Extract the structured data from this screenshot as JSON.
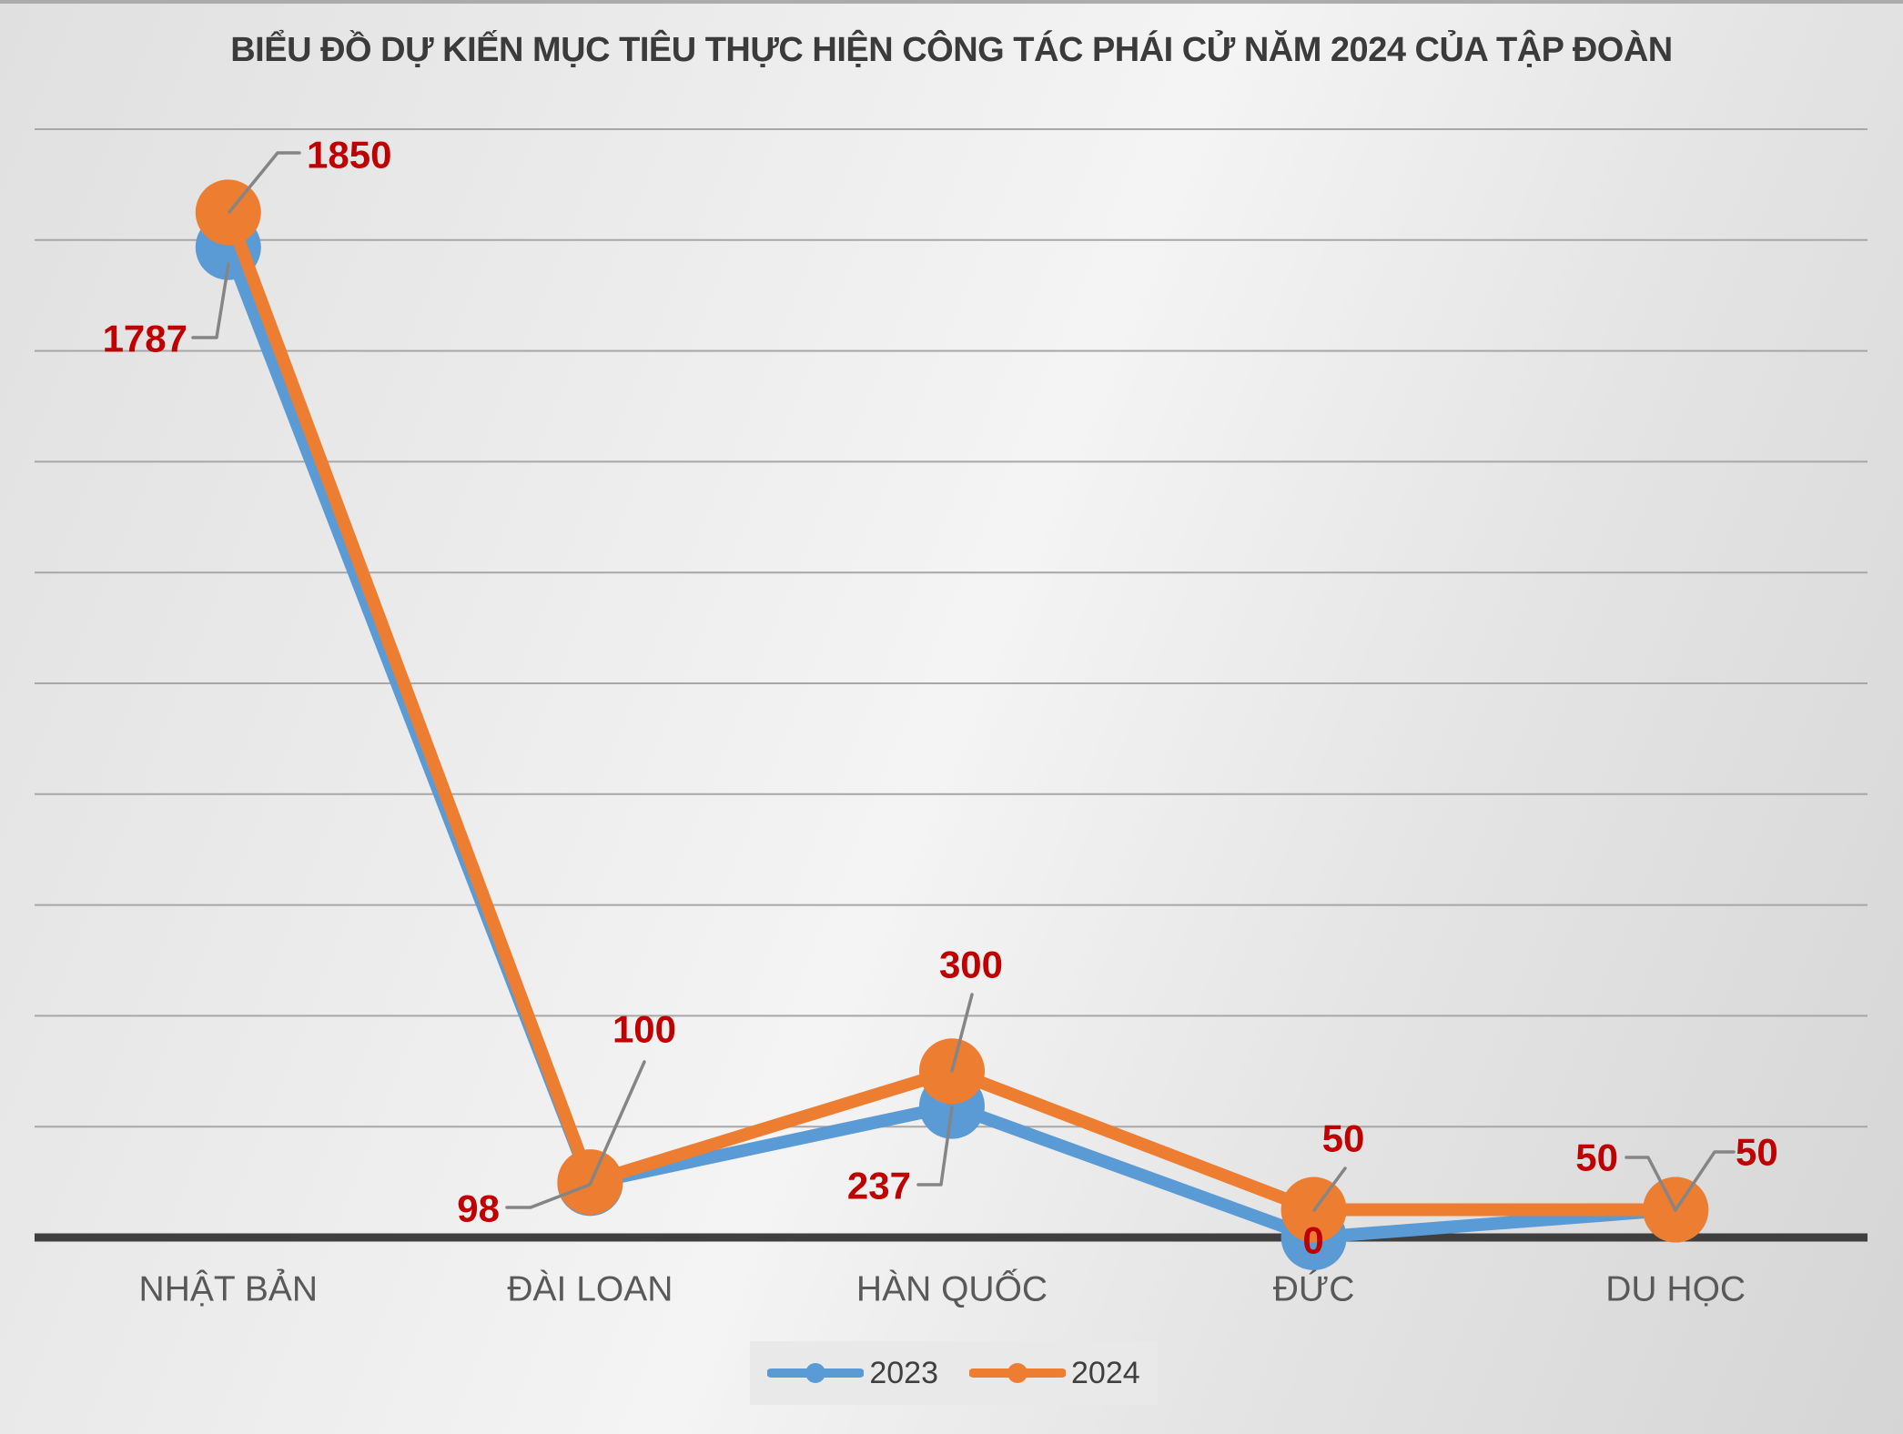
{
  "chart_data": {
    "type": "line",
    "title": "BIỂU ĐỒ DỰ KIẾN MỤC TIÊU THỰC HIỆN CÔNG TÁC PHÁI CỬ NĂM 2024 CỦA TẬP ĐOÀN",
    "categories": [
      "NHẬT BẢN",
      "ĐÀI LOAN",
      "HÀN QUỐC",
      "ĐỨC",
      "DU HỌC"
    ],
    "series": [
      {
        "name": "2023",
        "color": "#5B9BD5",
        "values": [
          1787,
          98,
          237,
          0,
          50
        ]
      },
      {
        "name": "2024",
        "color": "#ED7D31",
        "values": [
          1850,
          100,
          300,
          50,
          50
        ]
      }
    ],
    "data_labels": {
      "2023": [
        "1787",
        "98",
        "237",
        "0",
        "50"
      ],
      "2024": [
        "1850",
        "100",
        "300",
        "50",
        "50"
      ]
    },
    "ylim": [
      0,
      2000
    ],
    "gridline_step": 200,
    "grid": true,
    "xlabel": "",
    "ylabel": "",
    "legend_position": "bottom"
  },
  "colors": {
    "data_label": "#C00000",
    "axis": "#3F3F3F",
    "gridline": "#A7A7A7",
    "leader_line": "#858585",
    "category_label": "#595959",
    "legend_text": "#3F3F3F",
    "title_text": "#3B3B3B",
    "legend_background": "#E9E9E9",
    "top_strip": "#ABABAB"
  }
}
